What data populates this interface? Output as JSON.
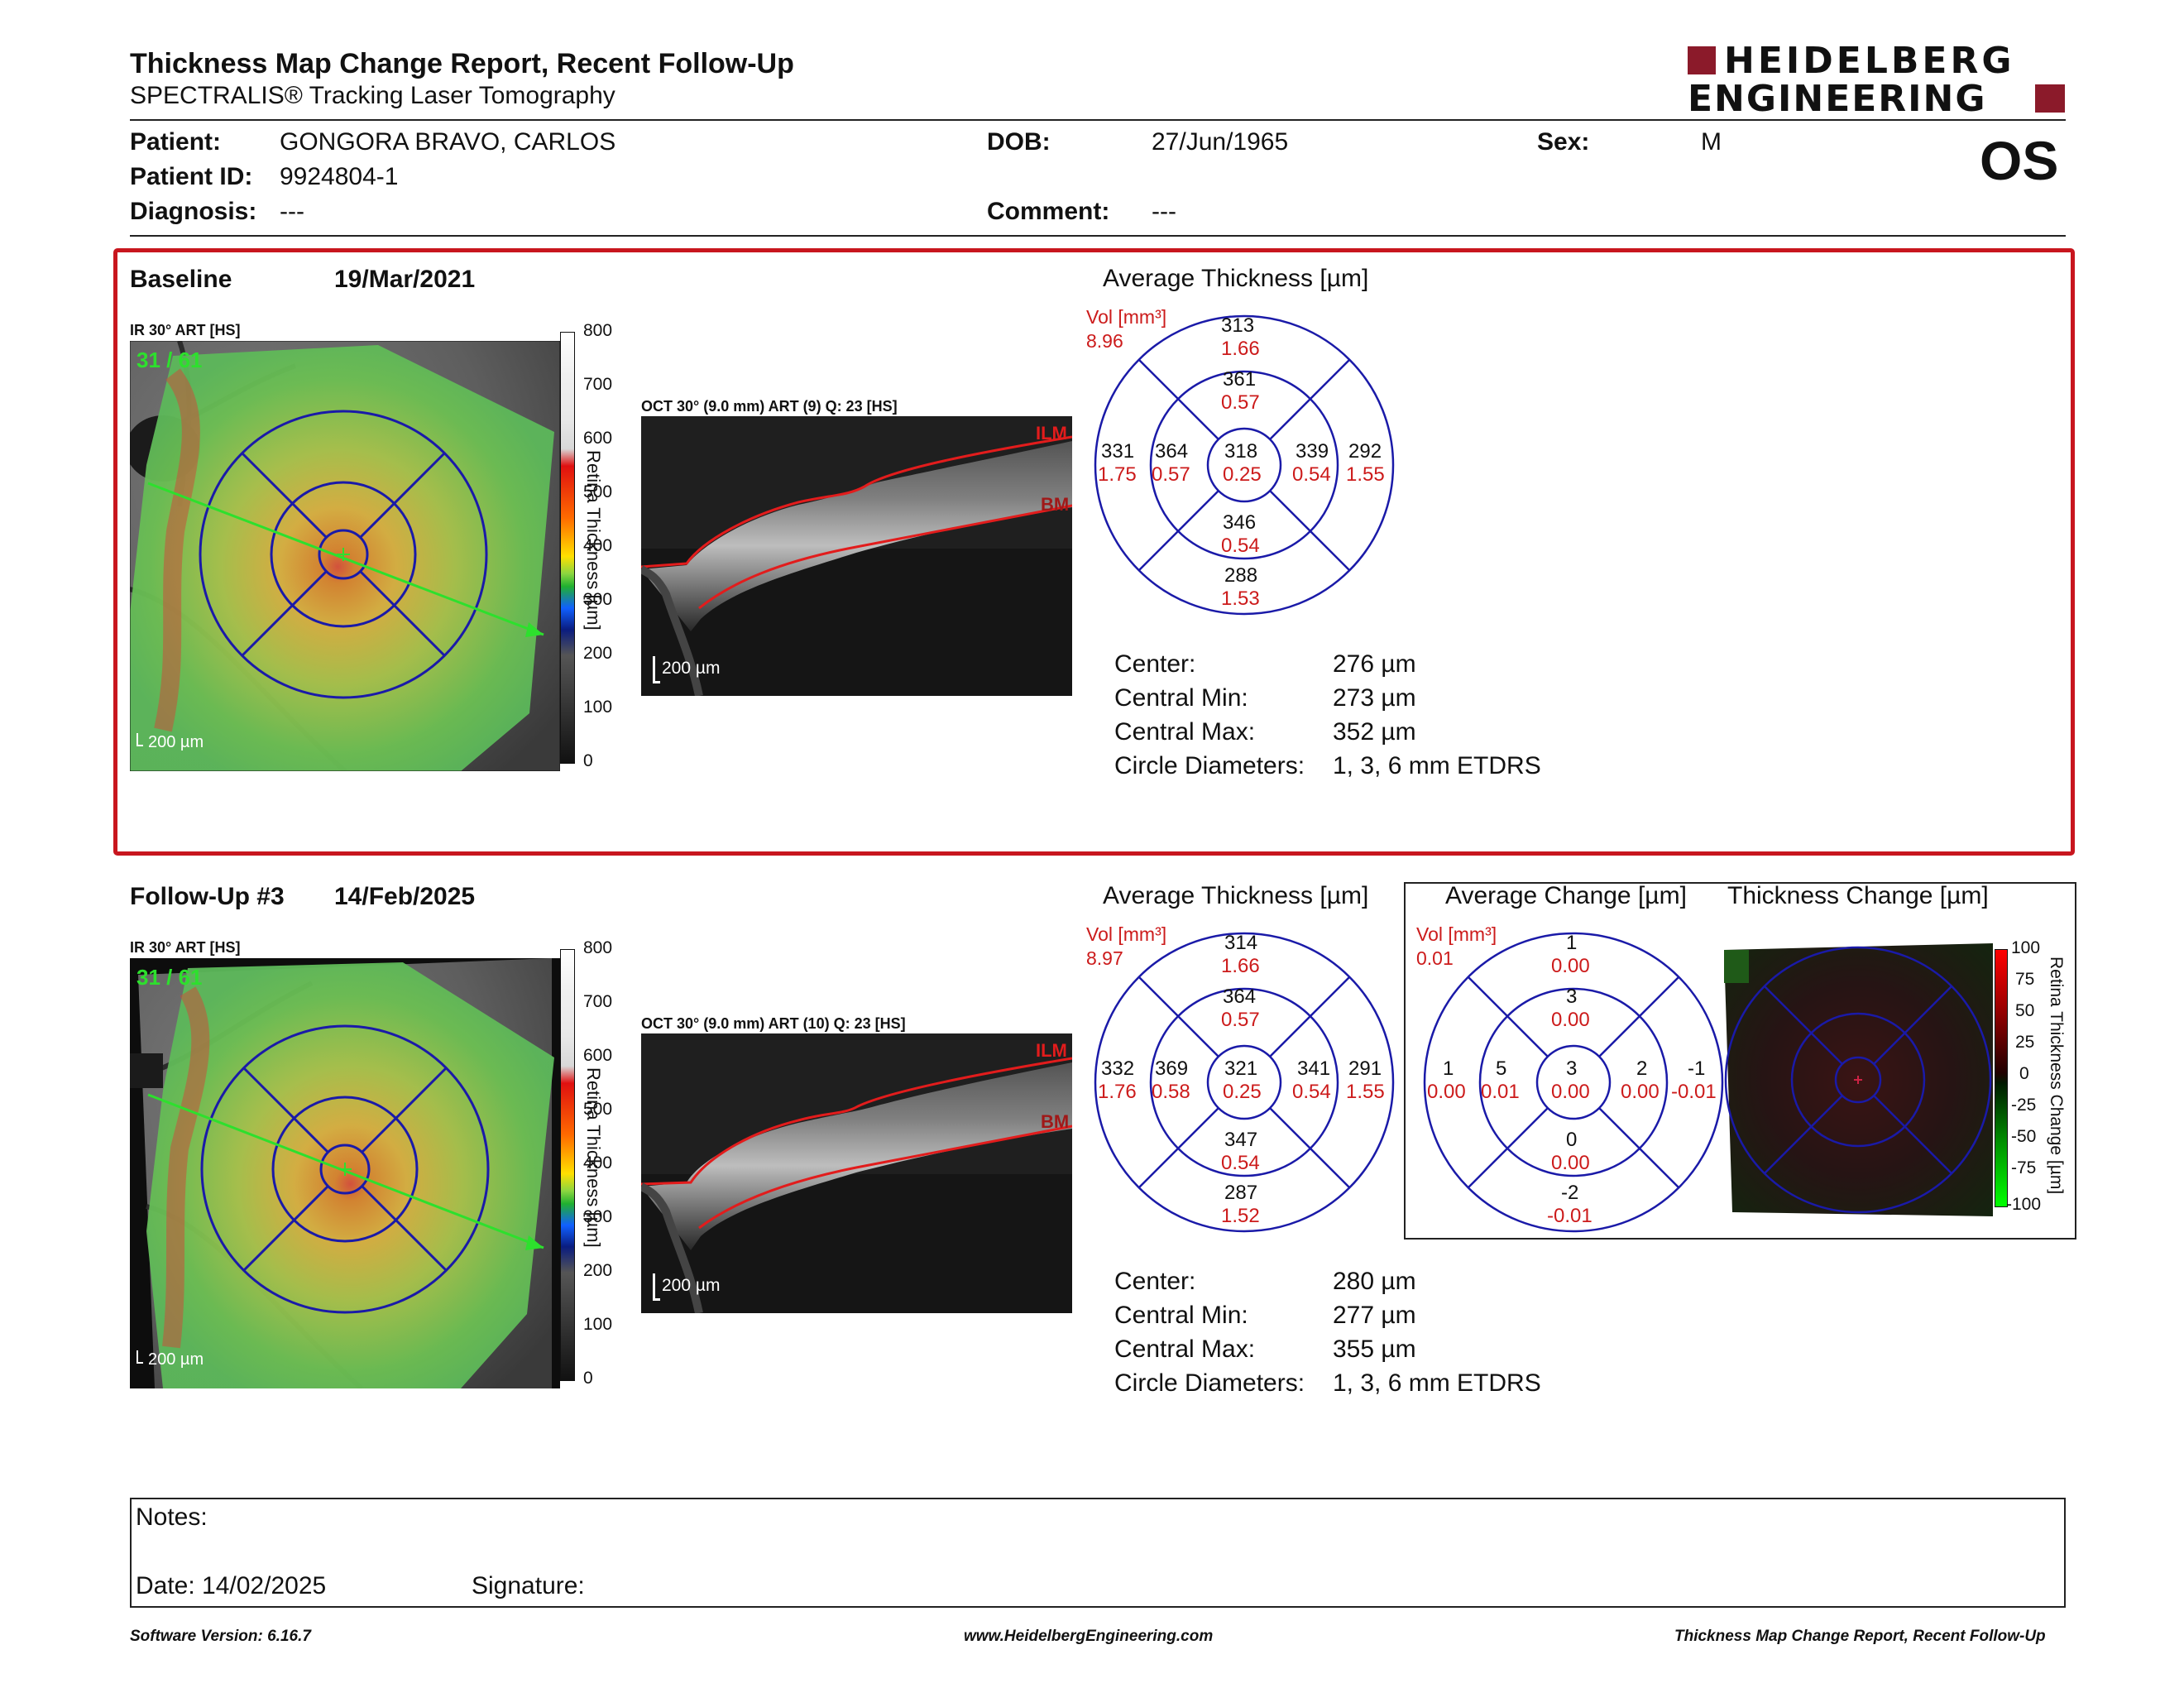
{
  "header": {
    "title": "Thickness Map Change Report, Recent Follow-Up",
    "subtitle": "SPECTRALIS® Tracking Laser Tomography",
    "logo_line1": "HEIDELBERG",
    "logo_line2": "ENGINEERING",
    "eye": "OS"
  },
  "patient": {
    "patient_label": "Patient:",
    "patient_value": "GONGORA BRAVO, CARLOS",
    "dob_label": "DOB:",
    "dob_value": "27/Jun/1965",
    "sex_label": "Sex:",
    "sex_value": "M",
    "id_label": "Patient ID:",
    "id_value": "9924804-1",
    "diagnosis_label": "Diagnosis:",
    "diagnosis_value": "---",
    "comment_label": "Comment:",
    "comment_value": "---"
  },
  "colorbar": {
    "ticks": [
      "800",
      "700",
      "600",
      "500",
      "400",
      "300",
      "200",
      "100",
      "0"
    ],
    "label": "Retina Thickness [µm]"
  },
  "change_bar": {
    "ticks": [
      "100",
      "75",
      "50",
      "25",
      "0",
      "-25",
      "-50",
      "-75",
      "-100"
    ],
    "label": "Retina Thickness Change [µm]"
  },
  "baseline": {
    "label": "Baseline",
    "date": "19/Mar/2021",
    "ir_label": "IR 30° ART [HS]",
    "ir_counter": "31 / 61",
    "ir_scale": "200 µm",
    "oct_label": "OCT 30° (9.0 mm) ART (9) Q: 23 [HS]",
    "oct_scale": "200 µm",
    "ilm": "ILM",
    "bm": "BM",
    "avg_title": "Average Thickness [µm]",
    "vol_label": "Vol [mm³]",
    "vol_value": "8.96",
    "etdrs": {
      "center": [
        "318",
        "0.25"
      ],
      "inner_sup": [
        "361",
        "0.57"
      ],
      "inner_temp": [
        "364",
        "0.57"
      ],
      "inner_nas": [
        "339",
        "0.54"
      ],
      "inner_inf": [
        "346",
        "0.54"
      ],
      "outer_sup": [
        "313",
        "1.66"
      ],
      "outer_temp": [
        "331",
        "1.75"
      ],
      "outer_nas": [
        "292",
        "1.55"
      ],
      "outer_inf": [
        "288",
        "1.53"
      ]
    },
    "stats": {
      "center_label": "Center:",
      "center_value": "276 µm",
      "min_label": "Central Min:",
      "min_value": "273 µm",
      "max_label": "Central Max:",
      "max_value": "352 µm",
      "diam_label": "Circle Diameters:",
      "diam_value": "1, 3, 6 mm ETDRS"
    }
  },
  "followup": {
    "label": "Follow-Up #3",
    "date": "14/Feb/2025",
    "ir_label": "IR 30° ART [HS]",
    "ir_counter": "31 / 61",
    "ir_scale": "200 µm",
    "oct_label": "OCT 30° (9.0 mm) ART (10) Q: 23 [HS]",
    "oct_scale": "200 µm",
    "ilm": "ILM",
    "bm": "BM",
    "avg_title": "Average Thickness [µm]",
    "vol_label": "Vol [mm³]",
    "vol_value": "8.97",
    "etdrs": {
      "center": [
        "321",
        "0.25"
      ],
      "inner_sup": [
        "364",
        "0.57"
      ],
      "inner_temp": [
        "369",
        "0.58"
      ],
      "inner_nas": [
        "341",
        "0.54"
      ],
      "inner_inf": [
        "347",
        "0.54"
      ],
      "outer_sup": [
        "314",
        "1.66"
      ],
      "outer_temp": [
        "332",
        "1.76"
      ],
      "outer_nas": [
        "291",
        "1.55"
      ],
      "outer_inf": [
        "287",
        "1.52"
      ]
    },
    "stats": {
      "center_label": "Center:",
      "center_value": "280 µm",
      "min_label": "Central Min:",
      "min_value": "277 µm",
      "max_label": "Central Max:",
      "max_value": "355 µm",
      "diam_label": "Circle Diameters:",
      "diam_value": "1, 3, 6 mm ETDRS"
    }
  },
  "change": {
    "avg_change_title": "Average Change [µm]",
    "thickness_change_title": "Thickness Change [µm]",
    "vol_label": "Vol [mm³]",
    "vol_value": "0.01",
    "etdrs": {
      "center": [
        "3",
        "0.00"
      ],
      "inner_sup": [
        "3",
        "0.00"
      ],
      "inner_temp": [
        "5",
        "0.01"
      ],
      "inner_nas": [
        "2",
        "0.00"
      ],
      "inner_inf": [
        "0",
        "0.00"
      ],
      "outer_sup": [
        "1",
        "0.00"
      ],
      "outer_temp": [
        "1",
        "0.00"
      ],
      "outer_nas": [
        "-1",
        "-0.01"
      ],
      "outer_inf": [
        "-2",
        "-0.01"
      ]
    }
  },
  "notes": {
    "notes_label": "Notes:",
    "date_label": "Date: 14/02/2025",
    "signature_label": "Signature:"
  },
  "footer": {
    "version": "Software Version: 6.16.7",
    "website": "www.HeidelbergEngineering.com",
    "report": "Thickness Map Change Report, Recent Follow-Up"
  },
  "colors": {
    "accent_red": "#c8161e",
    "etdrs_blue": "#1a1aa8",
    "vol_red": "#cc1b1b"
  }
}
